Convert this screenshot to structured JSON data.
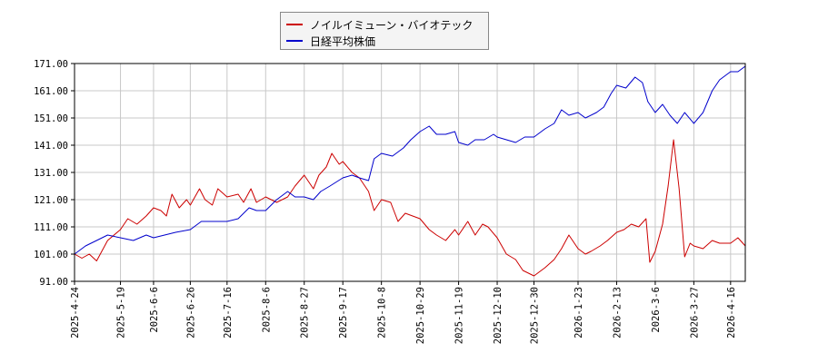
{
  "chart_data": {
    "type": "line",
    "title": "",
    "xlabel": "",
    "ylabel": "",
    "ylim": [
      91,
      171
    ],
    "y_ticks": [
      "91.00",
      "101.00",
      "111.00",
      "121.00",
      "131.00",
      "141.00",
      "151.00",
      "161.00",
      "171.00"
    ],
    "x_ticks": [
      "2025-4-24",
      "2025-5-19",
      "2025-6-6",
      "2025-6-26",
      "2025-7-16",
      "2025-8-6",
      "2025-8-27",
      "2025-9-17",
      "2025-10-8",
      "2025-10-29",
      "2025-11-19",
      "2025-12-10",
      "2025-12-30",
      "2026-1-23",
      "2026-2-13",
      "2026-3-6",
      "2026-3-27",
      "2026-4-16"
    ],
    "grid": true,
    "legend_position": "top-center",
    "series": [
      {
        "name": "ノイルイミューン・バイオテック",
        "color": "#cc0000",
        "points": [
          [
            "2025-4-24",
            101
          ],
          [
            "2025-4-28",
            99.5
          ],
          [
            "2025-5-2",
            101
          ],
          [
            "2025-5-6",
            98.5
          ],
          [
            "2025-5-12",
            106
          ],
          [
            "2025-5-19",
            110
          ],
          [
            "2025-5-23",
            114
          ],
          [
            "2025-5-28",
            112
          ],
          [
            "2025-6-2",
            115
          ],
          [
            "2025-6-6",
            118
          ],
          [
            "2025-6-10",
            117
          ],
          [
            "2025-6-13",
            115
          ],
          [
            "2025-6-16",
            123
          ],
          [
            "2025-6-20",
            118
          ],
          [
            "2025-6-24",
            121
          ],
          [
            "2025-6-26",
            119
          ],
          [
            "2025-7-1",
            125
          ],
          [
            "2025-7-4",
            121
          ],
          [
            "2025-7-8",
            119
          ],
          [
            "2025-7-11",
            125
          ],
          [
            "2025-7-16",
            122
          ],
          [
            "2025-7-22",
            123
          ],
          [
            "2025-7-25",
            120
          ],
          [
            "2025-7-29",
            125
          ],
          [
            "2025-8-1",
            120
          ],
          [
            "2025-8-6",
            122
          ],
          [
            "2025-8-12",
            120
          ],
          [
            "2025-8-18",
            122
          ],
          [
            "2025-8-22",
            126
          ],
          [
            "2025-8-27",
            130
          ],
          [
            "2025-9-1",
            125
          ],
          [
            "2025-9-4",
            130
          ],
          [
            "2025-9-8",
            133
          ],
          [
            "2025-9-11",
            138
          ],
          [
            "2025-9-15",
            134
          ],
          [
            "2025-9-17",
            135
          ],
          [
            "2025-9-22",
            131
          ],
          [
            "2025-9-26",
            129
          ],
          [
            "2025-10-1",
            124
          ],
          [
            "2025-10-4",
            117
          ],
          [
            "2025-10-8",
            121
          ],
          [
            "2025-10-13",
            120
          ],
          [
            "2025-10-17",
            113
          ],
          [
            "2025-10-21",
            116
          ],
          [
            "2025-10-25",
            115
          ],
          [
            "2025-10-29",
            114
          ],
          [
            "2025-11-3",
            110
          ],
          [
            "2025-11-7",
            108
          ],
          [
            "2025-11-12",
            106
          ],
          [
            "2025-11-17",
            110
          ],
          [
            "2025-11-19",
            108
          ],
          [
            "2025-11-24",
            113
          ],
          [
            "2025-11-28",
            108
          ],
          [
            "2025-12-2",
            112
          ],
          [
            "2025-12-5",
            111
          ],
          [
            "2025-12-10",
            107
          ],
          [
            "2025-12-15",
            101
          ],
          [
            "2025-12-20",
            99
          ],
          [
            "2025-12-24",
            95
          ],
          [
            "2025-12-30",
            93
          ],
          [
            "2026-1-5",
            96
          ],
          [
            "2026-1-10",
            99
          ],
          [
            "2026-1-14",
            103
          ],
          [
            "2026-1-18",
            108
          ],
          [
            "2026-1-23",
            103
          ],
          [
            "2026-1-27",
            101
          ],
          [
            "2026-1-30",
            102
          ],
          [
            "2026-2-4",
            104
          ],
          [
            "2026-2-8",
            106
          ],
          [
            "2026-2-13",
            109
          ],
          [
            "2026-2-17",
            110
          ],
          [
            "2026-2-21",
            112
          ],
          [
            "2026-2-25",
            111
          ],
          [
            "2026-3-1",
            114
          ],
          [
            "2026-3-3",
            98
          ],
          [
            "2026-3-6",
            102
          ],
          [
            "2026-3-10",
            112
          ],
          [
            "2026-3-13",
            126
          ],
          [
            "2026-3-16",
            143
          ],
          [
            "2026-3-19",
            125
          ],
          [
            "2026-3-22",
            100
          ],
          [
            "2026-3-25",
            105
          ],
          [
            "2026-3-27",
            104
          ],
          [
            "2026-4-1",
            103
          ],
          [
            "2026-4-6",
            106
          ],
          [
            "2026-4-10",
            105
          ],
          [
            "2026-4-16",
            105
          ],
          [
            "2026-4-20",
            107
          ],
          [
            "2026-4-24",
            104
          ]
        ]
      },
      {
        "name": "日経平均株価",
        "color": "#0000cc",
        "points": [
          [
            "2025-4-24",
            101
          ],
          [
            "2025-4-30",
            104
          ],
          [
            "2025-5-6",
            106
          ],
          [
            "2025-5-12",
            108
          ],
          [
            "2025-5-19",
            107
          ],
          [
            "2025-5-26",
            106
          ],
          [
            "2025-6-2",
            108
          ],
          [
            "2025-6-6",
            107
          ],
          [
            "2025-6-12",
            108
          ],
          [
            "2025-6-18",
            109
          ],
          [
            "2025-6-26",
            110
          ],
          [
            "2025-7-2",
            113
          ],
          [
            "2025-7-8",
            113
          ],
          [
            "2025-7-16",
            113
          ],
          [
            "2025-7-22",
            114
          ],
          [
            "2025-7-28",
            118
          ],
          [
            "2025-8-1",
            117
          ],
          [
            "2025-8-6",
            117
          ],
          [
            "2025-8-12",
            121
          ],
          [
            "2025-8-18",
            124
          ],
          [
            "2025-8-22",
            122
          ],
          [
            "2025-8-27",
            122
          ],
          [
            "2025-9-1",
            121
          ],
          [
            "2025-9-5",
            124
          ],
          [
            "2025-9-10",
            126
          ],
          [
            "2025-9-17",
            129
          ],
          [
            "2025-9-22",
            130
          ],
          [
            "2025-9-26",
            129
          ],
          [
            "2025-10-1",
            128
          ],
          [
            "2025-10-4",
            136
          ],
          [
            "2025-10-8",
            138
          ],
          [
            "2025-10-14",
            137
          ],
          [
            "2025-10-20",
            140
          ],
          [
            "2025-10-24",
            143
          ],
          [
            "2025-10-29",
            146
          ],
          [
            "2025-11-3",
            148
          ],
          [
            "2025-11-7",
            145
          ],
          [
            "2025-11-12",
            145
          ],
          [
            "2025-11-17",
            146
          ],
          [
            "2025-11-19",
            142
          ],
          [
            "2025-11-24",
            141
          ],
          [
            "2025-11-28",
            143
          ],
          [
            "2025-12-3",
            143
          ],
          [
            "2025-12-8",
            145
          ],
          [
            "2025-12-10",
            144
          ],
          [
            "2025-12-15",
            143
          ],
          [
            "2025-12-20",
            142
          ],
          [
            "2025-12-25",
            144
          ],
          [
            "2025-12-30",
            144
          ],
          [
            "2026-1-5",
            147
          ],
          [
            "2026-1-10",
            149
          ],
          [
            "2026-1-14",
            154
          ],
          [
            "2026-1-18",
            152
          ],
          [
            "2026-1-23",
            153
          ],
          [
            "2026-1-27",
            151
          ],
          [
            "2026-2-2",
            153
          ],
          [
            "2026-2-6",
            155
          ],
          [
            "2026-2-10",
            160
          ],
          [
            "2026-2-13",
            163
          ],
          [
            "2026-2-18",
            162
          ],
          [
            "2026-2-23",
            166
          ],
          [
            "2026-2-27",
            164
          ],
          [
            "2026-3-2",
            157
          ],
          [
            "2026-3-6",
            153
          ],
          [
            "2026-3-10",
            156
          ],
          [
            "2026-3-14",
            152
          ],
          [
            "2026-3-18",
            149
          ],
          [
            "2026-3-22",
            153
          ],
          [
            "2026-3-27",
            149
          ],
          [
            "2026-4-1",
            153
          ],
          [
            "2026-4-6",
            161
          ],
          [
            "2026-4-10",
            165
          ],
          [
            "2026-4-16",
            168
          ],
          [
            "2026-4-20",
            168
          ],
          [
            "2026-4-24",
            170
          ]
        ]
      }
    ]
  }
}
